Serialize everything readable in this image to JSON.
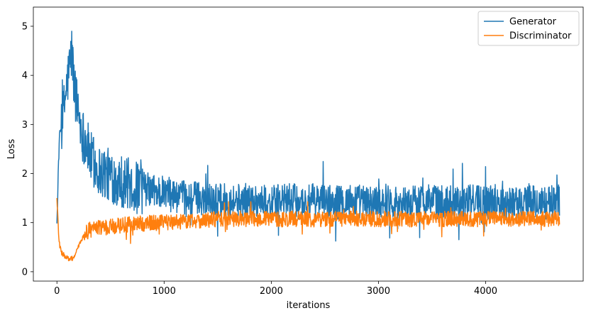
{
  "chart_data": {
    "type": "line",
    "xlabel": "iterations",
    "ylabel": "Loss",
    "xlim": [
      -220,
      4910
    ],
    "ylim": [
      -0.19,
      5.39
    ],
    "x_ticks": [
      0,
      1000,
      2000,
      3000,
      4000
    ],
    "y_ticks": [
      0,
      1,
      2,
      3,
      4,
      5
    ],
    "grid": false,
    "legend_position": "top-right",
    "series": [
      {
        "name": "Generator",
        "color": "#1f77b4",
        "x": [
          0,
          20,
          40,
          60,
          80,
          100,
          120,
          140,
          160,
          180,
          200,
          220,
          240,
          260,
          280,
          300,
          320,
          350,
          380,
          400,
          450,
          500,
          550,
          600,
          650,
          700,
          750,
          800,
          900,
          1000,
          1100,
          1200,
          1300,
          1400,
          1500,
          1600,
          1700,
          1800,
          1900,
          2000,
          2100,
          2200,
          2300,
          2400,
          2500,
          2600,
          2700,
          2800,
          2900,
          3000,
          3100,
          3200,
          3300,
          3400,
          3500,
          3600,
          3700,
          3800,
          3900,
          4000,
          4100,
          4200,
          4300,
          4400,
          4500,
          4600,
          4690
        ],
        "values": [
          0.95,
          2.6,
          3.0,
          3.2,
          3.6,
          3.9,
          4.2,
          4.5,
          3.8,
          3.5,
          3.3,
          3.0,
          2.8,
          2.7,
          2.6,
          2.4,
          2.3,
          2.2,
          2.1,
          2.05,
          2.0,
          1.95,
          1.9,
          1.85,
          1.8,
          1.75,
          1.7,
          1.7,
          1.65,
          1.6,
          1.55,
          1.5,
          1.5,
          1.5,
          1.45,
          1.45,
          1.45,
          1.45,
          1.45,
          1.4,
          1.45,
          1.45,
          1.4,
          1.45,
          1.45,
          1.4,
          1.45,
          1.45,
          1.4,
          1.45,
          1.45,
          1.4,
          1.4,
          1.45,
          1.45,
          1.4,
          1.45,
          1.4,
          1.45,
          1.4,
          1.45,
          1.4,
          1.4,
          1.45,
          1.4,
          1.4,
          1.45
        ]
      },
      {
        "name": "Discriminator",
        "color": "#ff7f0e",
        "x": [
          0,
          20,
          40,
          60,
          80,
          100,
          120,
          140,
          160,
          180,
          200,
          220,
          240,
          260,
          280,
          300,
          350,
          400,
          450,
          500,
          600,
          700,
          800,
          900,
          1000,
          1100,
          1200,
          1300,
          1400,
          1500,
          1600,
          1700,
          1800,
          1900,
          2000,
          2100,
          2200,
          2300,
          2400,
          2500,
          2600,
          2700,
          2800,
          2900,
          3000,
          3100,
          3200,
          3300,
          3400,
          3500,
          3600,
          3700,
          3800,
          3900,
          4000,
          4100,
          4200,
          4300,
          4400,
          4500,
          4600,
          4690
        ],
        "values": [
          1.5,
          0.6,
          0.4,
          0.35,
          0.3,
          0.28,
          0.25,
          0.27,
          0.3,
          0.4,
          0.5,
          0.6,
          0.7,
          0.75,
          0.8,
          0.85,
          0.88,
          0.9,
          0.9,
          0.92,
          0.95,
          0.97,
          0.98,
          1.0,
          1.0,
          1.02,
          1.03,
          1.05,
          1.05,
          1.07,
          1.08,
          1.08,
          1.07,
          1.08,
          1.08,
          1.07,
          1.08,
          1.08,
          1.07,
          1.08,
          1.08,
          1.07,
          1.08,
          1.08,
          1.07,
          1.08,
          1.08,
          1.07,
          1.08,
          1.08,
          1.07,
          1.08,
          1.08,
          1.07,
          1.08,
          1.08,
          1.07,
          1.08,
          1.08,
          1.07,
          1.08,
          1.08
        ]
      }
    ]
  }
}
